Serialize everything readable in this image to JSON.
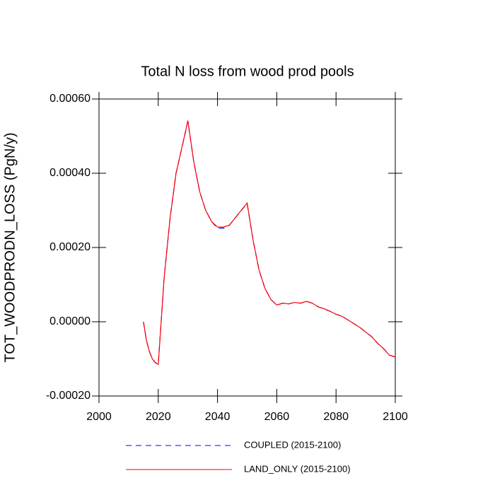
{
  "chart_data": {
    "type": "line",
    "title": "Total N loss from wood prod pools",
    "y_label": "TOT_WOODPRODN_LOSS  (PgN/y)",
    "x": [
      2015,
      2016,
      2017,
      2018,
      2019,
      2020,
      2022,
      2024,
      2026,
      2028,
      2030,
      2032,
      2034,
      2036,
      2038,
      2040,
      2042,
      2044,
      2046,
      2048,
      2050,
      2052,
      2054,
      2056,
      2058,
      2060,
      2062,
      2064,
      2066,
      2068,
      2070,
      2072,
      2074,
      2076,
      2078,
      2080,
      2082,
      2084,
      2086,
      2088,
      2090,
      2092,
      2094,
      2096,
      2098,
      2100
    ],
    "series": [
      {
        "name": "COUPLED (2015-2100)",
        "color": "#0000ff",
        "dashed": true,
        "values": [
          0,
          -5e-05,
          -8e-05,
          -0.0001,
          -0.00011,
          -0.000115,
          0.00012,
          0.00028,
          0.0004,
          0.00047,
          0.00054,
          0.00043,
          0.00035,
          0.0003,
          0.00027,
          0.000252,
          0.000252,
          0.00026,
          0.00028,
          0.0003,
          0.000318,
          0.00022,
          0.00014,
          9e-05,
          6e-05,
          4.5e-05,
          5e-05,
          4.8e-05,
          5.2e-05,
          5e-05,
          5.5e-05,
          5e-05,
          4e-05,
          3.5e-05,
          2.8e-05,
          2e-05,
          1.5e-05,
          5e-06,
          -5e-06,
          -1.5e-05,
          -2.8e-05,
          -4e-05,
          -5.8e-05,
          -7.2e-05,
          -9e-05,
          -9.5e-05
        ]
      },
      {
        "name": "LAND_ONLY (2015-2100)",
        "color": "#ff0000",
        "dashed": false,
        "values": [
          0,
          -5e-05,
          -8e-05,
          -0.0001,
          -0.00011,
          -0.000115,
          0.00012,
          0.00028,
          0.0004,
          0.00047,
          0.000542,
          0.00043,
          0.00035,
          0.0003,
          0.00027,
          0.000255,
          0.000255,
          0.00026,
          0.00028,
          0.0003,
          0.00032,
          0.00022,
          0.00014,
          9e-05,
          6e-05,
          4.5e-05,
          5e-05,
          4.8e-05,
          5.2e-05,
          5e-05,
          5.5e-05,
          5e-05,
          4e-05,
          3.5e-05,
          2.8e-05,
          2e-05,
          1.5e-05,
          5e-06,
          -5e-06,
          -1.5e-05,
          -2.8e-05,
          -4e-05,
          -5.8e-05,
          -7.2e-05,
          -9e-05,
          -9.5e-05
        ]
      }
    ],
    "xlim": [
      2000,
      2100
    ],
    "xticks": [
      2000,
      2020,
      2040,
      2060,
      2080,
      2100
    ],
    "ylim": [
      -0.0002,
      0.0006
    ],
    "yticks": [
      {
        "value": -0.0002,
        "label": "-0.00020"
      },
      {
        "value": 0,
        "label": "0.00000"
      },
      {
        "value": 0.0002,
        "label": "0.00020"
      },
      {
        "value": 0.0004,
        "label": "0.00040"
      },
      {
        "value": 0.0006,
        "label": "0.00060"
      }
    ],
    "legend": "bottom"
  }
}
